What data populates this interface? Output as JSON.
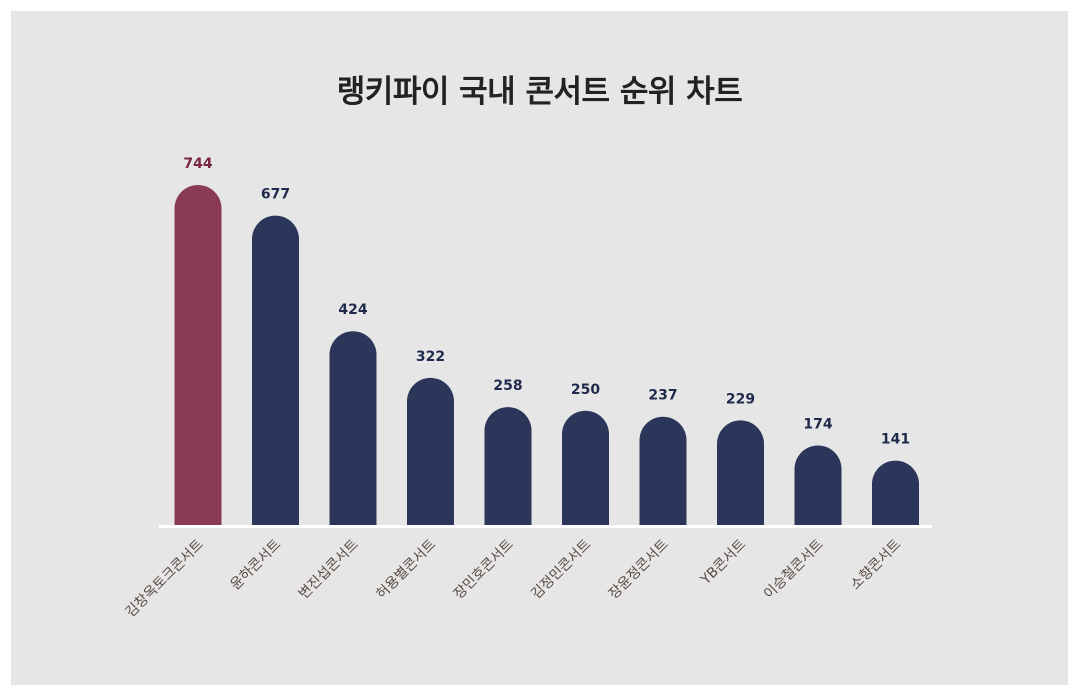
{
  "chart_data": {
    "type": "bar",
    "title": "랭키파이 국내 콘서트 순위 차트",
    "xlabel": "",
    "ylabel": "",
    "categories": [
      "김창옥토크콘서트",
      "윤하콘서트",
      "변진섭콘서트",
      "허용별콘서트",
      "장민호콘서트",
      "김정민콘서트",
      "장윤정콘서트",
      "YB콘서트",
      "이승철콘서트",
      "소향콘서트"
    ],
    "values": [
      744,
      677,
      424,
      322,
      258,
      250,
      237,
      229,
      174,
      141
    ],
    "ylim": [
      0,
      744
    ],
    "grid": false,
    "legend": "none",
    "highlight_index": 0
  },
  "colors": {
    "highlight": "#8a3a55",
    "bar": "#2b365a",
    "value_label_highlight": "#7a2640",
    "value_label": "#1f2a4d",
    "category_label": "#5a4a44",
    "baseline": "#ffffff",
    "background": "#e6e6e6"
  }
}
